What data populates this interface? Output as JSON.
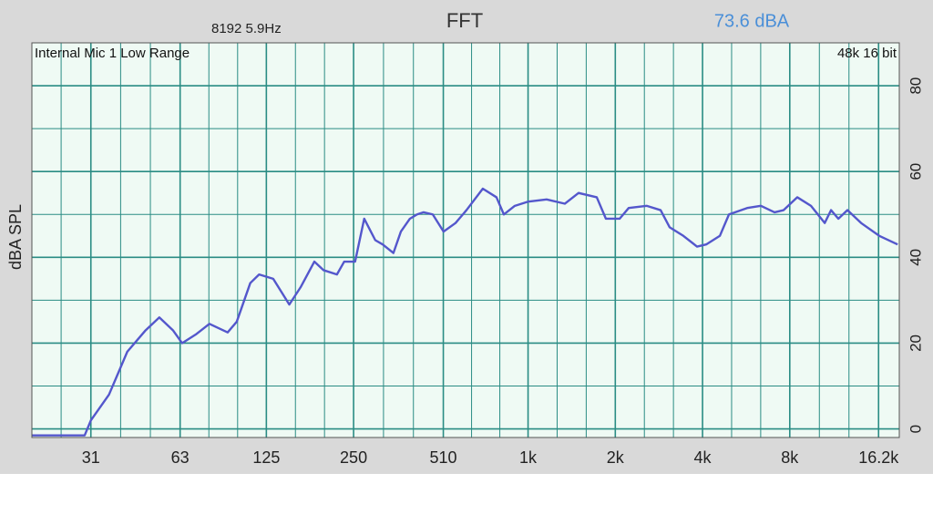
{
  "chart_data": {
    "type": "line",
    "title": "FFT",
    "fft_info": "8192  5.9Hz",
    "level": "73.6 dBA",
    "annotations": [
      "Internal Mic 1 Low Range",
      "48k 16 bit"
    ],
    "y_label": "dBA SPL",
    "x_scale": "log",
    "xlim": [
      19.4,
      19100
    ],
    "xticks": [
      31,
      63,
      125,
      250,
      510,
      {
        "value": 1000,
        "label": "1k"
      },
      {
        "value": 2000,
        "label": "2k"
      },
      {
        "value": 4000,
        "label": "4k"
      },
      {
        "value": 8000,
        "label": "8k"
      },
      {
        "value": 16200,
        "label": "16.2k"
      }
    ],
    "ylim": [
      -2,
      90
    ],
    "yticks": [
      0,
      20,
      40,
      60,
      80
    ],
    "minor_yticks": [
      10,
      30,
      50,
      70
    ],
    "grid": true,
    "x": [
      19.4,
      29.5,
      31,
      35.8,
      41.4,
      47.9,
      53.4,
      59.5,
      64,
      71.3,
      79.5,
      91.9,
      98.8,
      110,
      118,
      132,
      150,
      164,
      183,
      197,
      219,
      232,
      253,
      272,
      297,
      315,
      343,
      364,
      391,
      414,
      436,
      469,
      511,
      562,
      613,
      698,
      778,
      825,
      900,
      1003,
      1159,
      1340,
      1494,
      1726,
      1856,
      2070,
      2225,
      2570,
      2867,
      3081,
      3435,
      3830,
      4117,
      4590,
      4935,
      5704,
      6359,
      7090,
      7620,
      8494,
      9470,
      10560,
      11107,
      11770,
      12650,
      14100,
      16300,
      18850
    ],
    "series": [
      {
        "name": "FFT",
        "color": "#5457cc",
        "values": [
          -1.5,
          -1.5,
          2,
          8,
          18,
          23,
          26,
          23,
          20,
          22,
          24.5,
          22.5,
          25,
          34,
          36,
          35,
          29,
          33,
          39,
          37,
          36,
          39,
          39,
          49,
          44,
          43,
          41,
          46,
          49,
          50,
          50.5,
          50,
          46,
          48,
          51,
          56,
          54,
          50,
          52,
          53,
          53.5,
          52.5,
          55,
          54,
          49,
          49,
          51.5,
          52,
          51,
          47,
          45,
          42.5,
          43,
          45,
          50,
          51.5,
          52,
          50.5,
          51,
          54,
          52,
          48,
          51,
          49,
          51,
          48,
          45,
          43
        ]
      }
    ]
  }
}
